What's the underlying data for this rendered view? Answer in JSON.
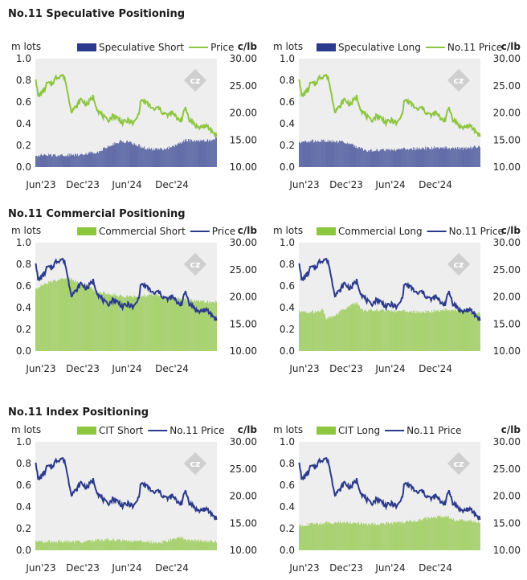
{
  "colors": {
    "long_short_navy": "#2b3a8c",
    "price_green": "#8dc63f",
    "bar_green": "#8dc63f",
    "price_navy": "#2b3a8c",
    "plot_bg": "#eeeeee"
  },
  "sections": [
    {
      "title": "No.11 Speculative Positioning"
    },
    {
      "title": "No.11 Commercial Positioning"
    },
    {
      "title": "No.11 Index Positioning"
    }
  ],
  "axes": {
    "left_unit": "m lots",
    "right_unit": "c/lb",
    "left_ticks": [
      "0.0",
      "0.2",
      "0.4",
      "0.6",
      "0.8",
      "1.0"
    ],
    "right_ticks": [
      "10.00",
      "15.00",
      "20.00",
      "25.00",
      "30.00"
    ],
    "x_ticks": [
      "Jun'23",
      "Dec'23",
      "Jun'24",
      "Dec'24"
    ]
  },
  "chart_data": [
    {
      "type": "bar+line",
      "title": "No.11 Speculative Positioning",
      "bar_series": {
        "name": "Speculative Short",
        "shape": "spec_short",
        "color": "#2b3a8c"
      },
      "line_series": {
        "name": "Price",
        "color": "#8dc63f"
      },
      "ylim_left": [
        0,
        1
      ],
      "ylim_right": [
        10,
        30
      ],
      "x_ticks": [
        "Jun'23",
        "Dec'23",
        "Jun'24",
        "Dec'24"
      ]
    },
    {
      "type": "bar+line",
      "title": "No.11 Speculative Positioning",
      "bar_series": {
        "name": "Speculative Long",
        "shape": "spec_long",
        "color": "#2b3a8c"
      },
      "line_series": {
        "name": "No.11 Price",
        "color": "#8dc63f"
      },
      "ylim_left": [
        0,
        1
      ],
      "ylim_right": [
        10,
        30
      ],
      "x_ticks": [
        "Jun'23",
        "Dec'23",
        "Jun'24",
        "Dec'24"
      ]
    },
    {
      "type": "bar+line",
      "title": "No.11 Commercial Positioning",
      "bar_series": {
        "name": "Commercial Short",
        "shape": "comm_short",
        "color": "#8dc63f"
      },
      "line_series": {
        "name": "Price",
        "color": "#2b3a8c"
      },
      "ylim_left": [
        0,
        1
      ],
      "ylim_right": [
        10,
        30
      ],
      "x_ticks": [
        "Jun'23",
        "Dec'23",
        "Jun'24",
        "Dec'24"
      ]
    },
    {
      "type": "bar+line",
      "title": "No.11 Commercial Positioning",
      "bar_series": {
        "name": "Commercial Long",
        "shape": "comm_long",
        "color": "#8dc63f"
      },
      "line_series": {
        "name": "No.11 Price",
        "color": "#2b3a8c"
      },
      "ylim_left": [
        0,
        1
      ],
      "ylim_right": [
        10,
        30
      ],
      "x_ticks": [
        "Jun'23",
        "Dec'23",
        "Jun'24",
        "Dec'24"
      ]
    },
    {
      "type": "bar+line",
      "title": "No.11 Index Positioning",
      "bar_series": {
        "name": "CIT Short",
        "shape": "cit_short",
        "color": "#8dc63f"
      },
      "line_series": {
        "name": "No.11 Price",
        "color": "#2b3a8c"
      },
      "ylim_left": [
        0,
        1
      ],
      "ylim_right": [
        10,
        30
      ],
      "x_ticks": [
        "Jun'23",
        "Dec'23",
        "Jun'24",
        "Dec'24"
      ]
    },
    {
      "type": "bar+line",
      "title": "No.11 Index Positioning",
      "bar_series": {
        "name": "CIT Long",
        "shape": "cit_long",
        "color": "#8dc63f"
      },
      "line_series": {
        "name": "No.11 Price",
        "color": "#2b3a8c"
      },
      "ylim_left": [
        0,
        1
      ],
      "ylim_right": [
        10,
        30
      ],
      "x_ticks": [
        "Jun'23",
        "Dec'23",
        "Jun'24",
        "Dec'24"
      ]
    }
  ],
  "price_keypoints": [
    [
      0,
      26.5
    ],
    [
      3,
      23
    ],
    [
      10,
      24
    ],
    [
      15,
      25.5
    ],
    [
      20,
      25.2
    ],
    [
      26,
      26.5
    ],
    [
      34,
      27.0
    ],
    [
      38,
      26.2
    ],
    [
      42,
      23
    ],
    [
      46,
      20.5
    ],
    [
      52,
      21
    ],
    [
      58,
      22.5
    ],
    [
      66,
      21.5
    ],
    [
      74,
      23.0
    ],
    [
      80,
      20.5
    ],
    [
      86,
      19.5
    ],
    [
      92,
      18.5
    ],
    [
      100,
      19.5
    ],
    [
      106,
      19.0
    ],
    [
      112,
      18.2
    ],
    [
      120,
      18.6
    ],
    [
      126,
      18.0
    ],
    [
      132,
      19.5
    ],
    [
      136,
      22.5
    ],
    [
      140,
      22.0
    ],
    [
      146,
      21.5
    ],
    [
      152,
      20.5
    ],
    [
      158,
      21.0
    ],
    [
      164,
      20
    ],
    [
      170,
      19.5
    ],
    [
      176,
      20.0
    ],
    [
      182,
      19.0
    ],
    [
      188,
      18.7
    ],
    [
      193,
      21.0
    ],
    [
      198,
      18.8
    ],
    [
      204,
      18.0
    ],
    [
      210,
      17.2
    ],
    [
      216,
      17.6
    ],
    [
      222,
      17.3
    ],
    [
      228,
      16.5
    ],
    [
      233,
      15.8
    ]
  ],
  "bar_keypoints": {
    "spec_short": [
      [
        0,
        0.11
      ],
      [
        40,
        0.11
      ],
      [
        60,
        0.12
      ],
      [
        80,
        0.14
      ],
      [
        90,
        0.18
      ],
      [
        110,
        0.24
      ],
      [
        120,
        0.23
      ],
      [
        140,
        0.18
      ],
      [
        150,
        0.16
      ],
      [
        175,
        0.18
      ],
      [
        185,
        0.22
      ],
      [
        195,
        0.25
      ],
      [
        210,
        0.24
      ],
      [
        228,
        0.25
      ],
      [
        233,
        0.27
      ]
    ],
    "spec_long": [
      [
        0,
        0.22
      ],
      [
        10,
        0.24
      ],
      [
        30,
        0.24
      ],
      [
        60,
        0.23
      ],
      [
        80,
        0.17
      ],
      [
        90,
        0.15
      ],
      [
        120,
        0.16
      ],
      [
        150,
        0.17
      ],
      [
        180,
        0.18
      ],
      [
        210,
        0.17
      ],
      [
        233,
        0.19
      ]
    ],
    "comm_short": [
      [
        0,
        0.58
      ],
      [
        20,
        0.64
      ],
      [
        40,
        0.68
      ],
      [
        60,
        0.62
      ],
      [
        80,
        0.55
      ],
      [
        100,
        0.52
      ],
      [
        120,
        0.5
      ],
      [
        150,
        0.52
      ],
      [
        170,
        0.5
      ],
      [
        190,
        0.48
      ],
      [
        210,
        0.46
      ],
      [
        233,
        0.45
      ]
    ],
    "comm_long": [
      [
        0,
        0.36
      ],
      [
        20,
        0.36
      ],
      [
        30,
        0.38
      ],
      [
        35,
        0.3
      ],
      [
        45,
        0.32
      ],
      [
        60,
        0.4
      ],
      [
        75,
        0.45
      ],
      [
        80,
        0.38
      ],
      [
        120,
        0.37
      ],
      [
        160,
        0.36
      ],
      [
        190,
        0.38
      ],
      [
        210,
        0.37
      ],
      [
        233,
        0.35
      ]
    ],
    "cit_short": [
      [
        0,
        0.08
      ],
      [
        30,
        0.08
      ],
      [
        60,
        0.08
      ],
      [
        90,
        0.1
      ],
      [
        110,
        0.09
      ],
      [
        140,
        0.08
      ],
      [
        160,
        0.07
      ],
      [
        175,
        0.1
      ],
      [
        185,
        0.12
      ],
      [
        200,
        0.09
      ],
      [
        233,
        0.08
      ]
    ],
    "cit_long": [
      [
        0,
        0.23
      ],
      [
        30,
        0.25
      ],
      [
        60,
        0.26
      ],
      [
        90,
        0.24
      ],
      [
        120,
        0.25
      ],
      [
        150,
        0.27
      ],
      [
        170,
        0.3
      ],
      [
        190,
        0.32
      ],
      [
        200,
        0.28
      ],
      [
        233,
        0.26
      ]
    ]
  }
}
